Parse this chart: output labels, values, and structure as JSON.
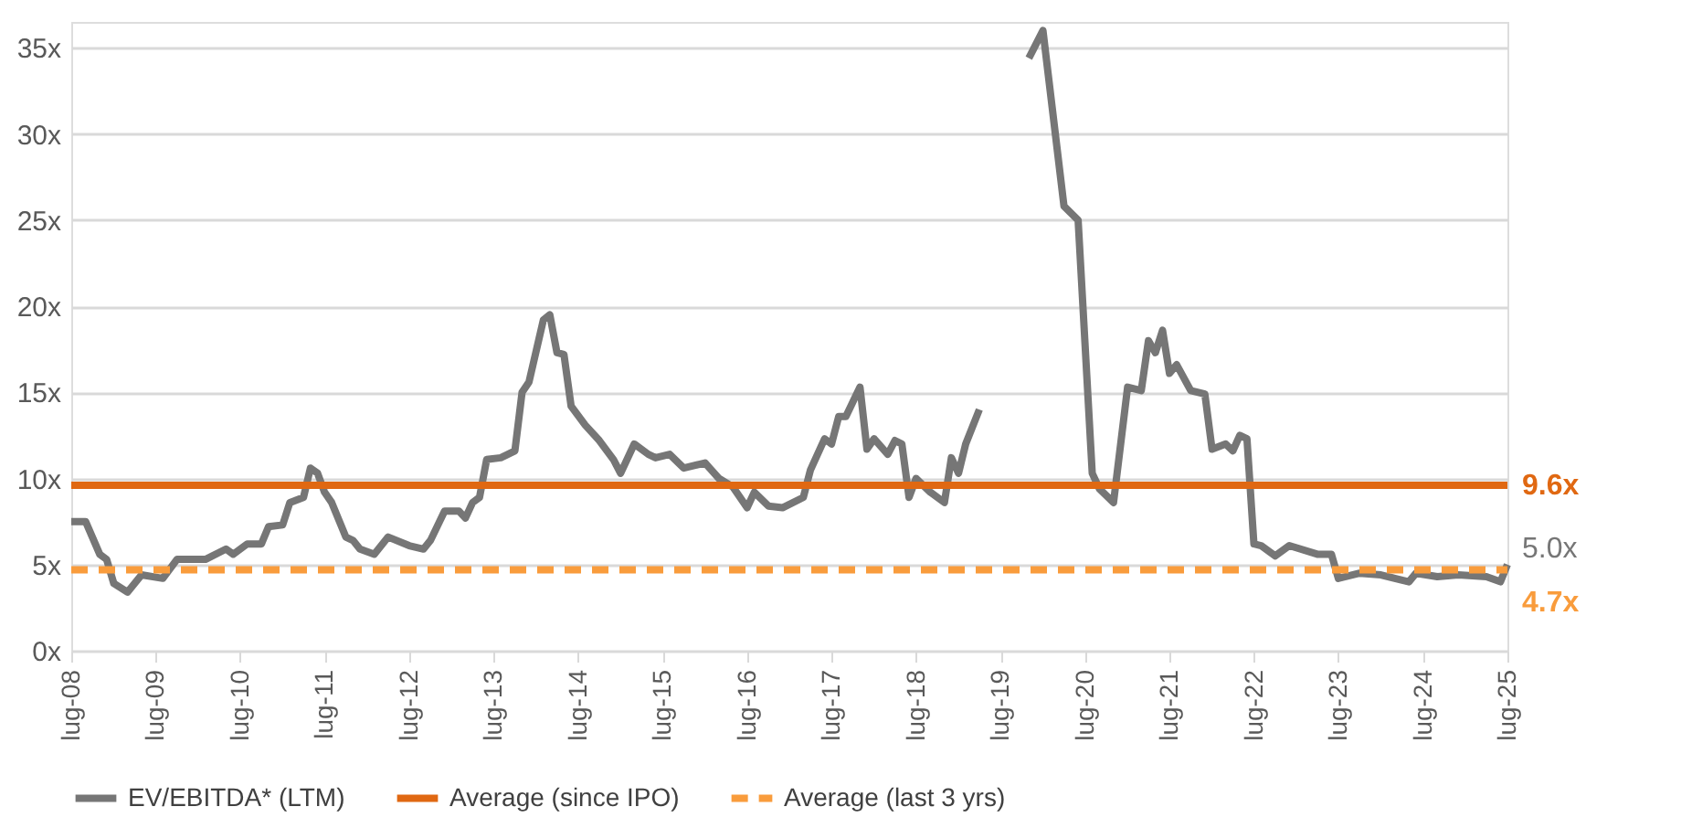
{
  "chart_data": {
    "type": "line",
    "x": [
      "2008-07",
      "2008-09",
      "2008-11",
      "2008-12",
      "2009-01",
      "2009-03",
      "2009-05",
      "2009-08",
      "2009-10",
      "2010-02",
      "2010-05",
      "2010-06",
      "2010-08",
      "2010-10",
      "2010-11",
      "2011-01",
      "2011-02",
      "2011-04",
      "2011-05",
      "2011-06",
      "2011-07",
      "2011-08",
      "2011-10",
      "2011-11",
      "2011-12",
      "2012-02",
      "2012-04",
      "2012-07",
      "2012-09",
      "2012-10",
      "2012-12",
      "2013-02",
      "2013-03",
      "2013-04",
      "2013-05",
      "2013-06",
      "2013-08",
      "2013-10",
      "2013-11",
      "2013-12",
      "2014-02",
      "2014-03",
      "2014-04",
      "2014-05",
      "2014-06",
      "2014-08",
      "2014-10",
      "2014-12",
      "2015-01",
      "2015-03",
      "2015-05",
      "2015-06",
      "2015-08",
      "2015-10",
      "2016-01",
      "2016-03",
      "2016-05",
      "2016-07",
      "2016-08",
      "2016-10",
      "2016-12",
      "2017-03",
      "2017-04",
      "2017-06",
      "2017-07",
      "2017-08",
      "2017-09",
      "2017-11",
      "2017-12",
      "2018-01",
      "2018-03",
      "2018-04",
      "2018-05",
      "2018-06",
      "2018-07",
      "2018-09",
      "2018-11",
      "2018-12",
      "2019-01",
      "2019-02",
      "2019-04",
      "2019-07",
      "2019-11",
      "2020-01",
      "2020-04",
      "2020-06",
      "2020-08",
      "2020-09",
      "2020-11",
      "2021-01",
      "2021-03",
      "2021-04",
      "2021-05",
      "2021-06",
      "2021-07",
      "2021-08",
      "2021-10",
      "2021-12",
      "2022-01",
      "2022-03",
      "2022-04",
      "2022-05",
      "2022-06",
      "2022-07",
      "2022-08",
      "2022-10",
      "2022-12",
      "2023-04",
      "2023-06",
      "2023-07",
      "2023-10",
      "2024-01",
      "2024-03",
      "2024-05",
      "2024-06",
      "2024-09",
      "2024-12",
      "2025-04",
      "2025-06",
      "2025-07"
    ],
    "series": [
      {
        "name": "EV/EBITDA* (LTM)",
        "color": "#767676",
        "line_style": "solid",
        "values": [
          7.5,
          7.5,
          5.6,
          5.3,
          3.9,
          3.4,
          4.4,
          4.2,
          5.3,
          5.3,
          5.9,
          5.6,
          6.2,
          6.2,
          7.2,
          7.3,
          8.6,
          8.9,
          10.6,
          10.3,
          9.2,
          8.6,
          6.6,
          6.4,
          5.9,
          5.6,
          6.6,
          6.1,
          5.9,
          6.4,
          8.1,
          8.1,
          7.7,
          8.6,
          8.9,
          11.1,
          11.2,
          11.6,
          15.0,
          15.6,
          19.2,
          19.5,
          17.3,
          17.2,
          14.2,
          13.1,
          12.2,
          11.1,
          10.3,
          12.0,
          11.4,
          11.2,
          11.4,
          10.6,
          10.9,
          10.0,
          9.5,
          8.3,
          9.2,
          8.4,
          8.3,
          8.9,
          10.5,
          12.3,
          12.0,
          13.6,
          13.6,
          15.3,
          11.7,
          12.3,
          11.4,
          12.2,
          12.0,
          8.9,
          10.0,
          9.2,
          8.6,
          11.2,
          10.3,
          12.0,
          14.0,
          null,
          34.4,
          36.0,
          25.8,
          25.0,
          10.3,
          9.4,
          8.6,
          15.3,
          15.1,
          18.0,
          17.3,
          18.6,
          16.1,
          16.6,
          15.1,
          14.9,
          11.7,
          12.0,
          11.6,
          12.5,
          12.3,
          6.2,
          6.1,
          5.5,
          6.1,
          5.6,
          5.6,
          4.2,
          4.5,
          4.4,
          4.2,
          4.0,
          4.5,
          4.3,
          4.4,
          4.3,
          4.0,
          5.0
        ]
      },
      {
        "name": "Average (since IPO)",
        "color": "#e06812",
        "line_style": "solid",
        "x": [
          "2008-07",
          "2025-07"
        ],
        "values": [
          9.6,
          9.6
        ]
      },
      {
        "name": "Average (last 3 yrs)",
        "color": "#f99c3c",
        "line_style": "dashed",
        "x": [
          "2008-07",
          "2025-07"
        ],
        "values": [
          4.7,
          4.7
        ]
      }
    ],
    "annotations": [
      {
        "text": "5.0x",
        "x": "2025-07",
        "y": 5.0
      },
      {
        "text": "9.6x",
        "x": "2025-07",
        "y": 9.6
      },
      {
        "text": "4.7x",
        "x": "2025-07",
        "y": 4.7
      }
    ],
    "xlim": [
      "2008-07",
      "2025-07"
    ],
    "xticks": [
      {
        "value": "2008-07",
        "label": "lug-08"
      },
      {
        "value": "2009-07",
        "label": "lug-09"
      },
      {
        "value": "2010-07",
        "label": "lug-10"
      },
      {
        "value": "2011-07",
        "label": "lug-11"
      },
      {
        "value": "2012-07",
        "label": "lug-12"
      },
      {
        "value": "2013-07",
        "label": "lug-13"
      },
      {
        "value": "2014-07",
        "label": "lug-14"
      },
      {
        "value": "2015-07",
        "label": "lug-15"
      },
      {
        "value": "2016-07",
        "label": "lug-16"
      },
      {
        "value": "2017-07",
        "label": "lug-17"
      },
      {
        "value": "2018-07",
        "label": "lug-18"
      },
      {
        "value": "2019-07",
        "label": "lug-19"
      },
      {
        "value": "2020-07",
        "label": "lug-20"
      },
      {
        "value": "2021-07",
        "label": "lug-21"
      },
      {
        "value": "2022-07",
        "label": "lug-22"
      },
      {
        "value": "2023-07",
        "label": "lug-23"
      },
      {
        "value": "2024-07",
        "label": "lug-24"
      },
      {
        "value": "2025-07",
        "label": "lug-25"
      }
    ],
    "ylim": [
      0,
      36.5
    ],
    "yticks": [
      {
        "value": 0,
        "label": "0x"
      },
      {
        "value": 5,
        "label": "5x"
      },
      {
        "value": 10,
        "label": "10x"
      },
      {
        "value": 15,
        "label": "15x"
      },
      {
        "value": 20,
        "label": "20x"
      },
      {
        "value": 25,
        "label": "25x"
      },
      {
        "value": 30,
        "label": "30x"
      },
      {
        "value": 35,
        "label": "35x"
      }
    ],
    "grid": "y",
    "legend": "bottom",
    "marker": "none"
  }
}
